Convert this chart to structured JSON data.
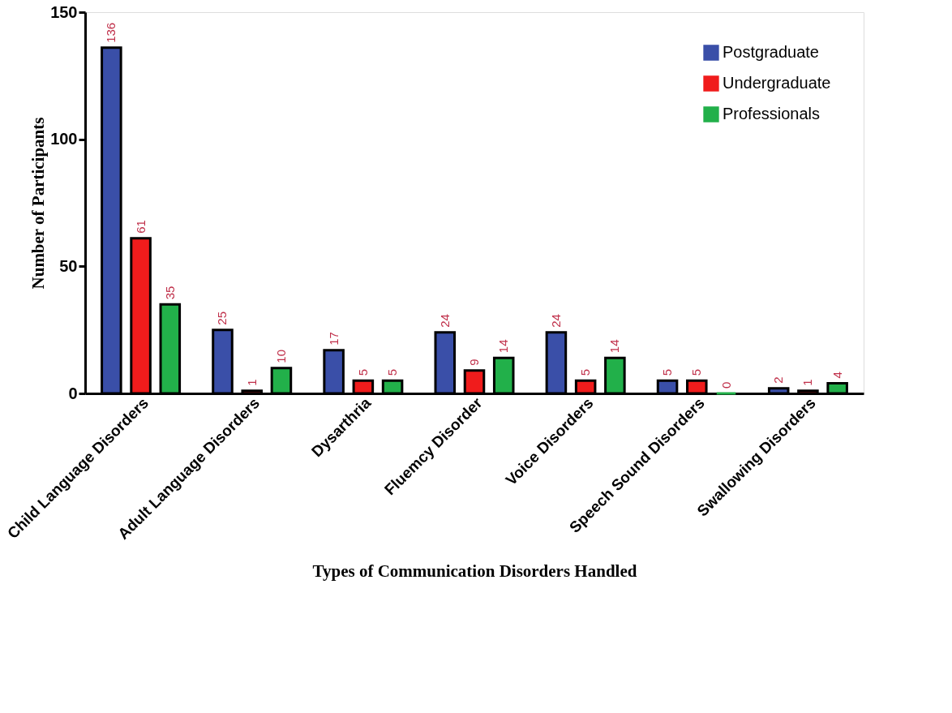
{
  "chart_data": {
    "type": "bar",
    "xlabel": "Types of Communication Disorders Handled",
    "ylabel": "Number of Participants",
    "categories": [
      "Child Language Disorders",
      "Adult Language Disorders",
      "Dysarthria",
      "Fluemcy Disorder",
      "Voice  Disorders",
      "Speech Sound Disorders",
      "Swallowing Disorders"
    ],
    "series": [
      {
        "name": "Postgraduate",
        "color": "#3a4fa8",
        "values": [
          136,
          25,
          17,
          24,
          24,
          5,
          2
        ]
      },
      {
        "name": "Undergraduate",
        "color": "#f01c1c",
        "values": [
          61,
          1,
          5,
          9,
          5,
          5,
          1
        ]
      },
      {
        "name": "Professionals",
        "color": "#22b04a",
        "values": [
          35,
          10,
          5,
          14,
          14,
          0,
          4
        ]
      }
    ],
    "ylim": [
      0,
      150
    ],
    "yticks": [
      0,
      50,
      100,
      150
    ],
    "grid": false,
    "legend": "top right",
    "data_labels": true
  }
}
